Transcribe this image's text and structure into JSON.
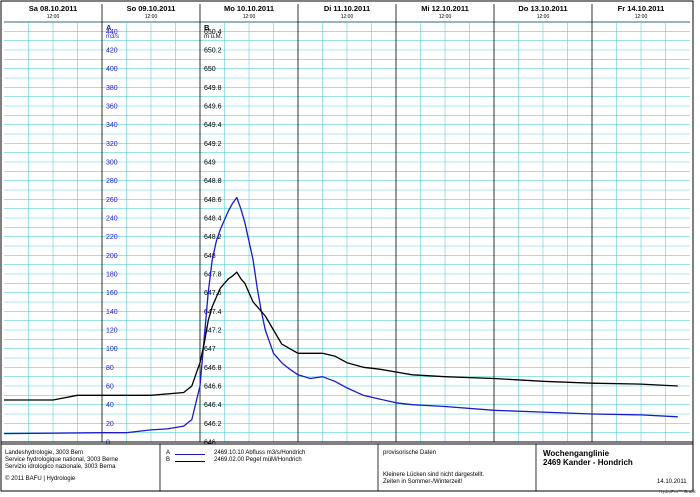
{
  "chart_data": {
    "type": "line",
    "days": [
      {
        "label": "Sa  08.10.2011",
        "noon": "12:00"
      },
      {
        "label": "So  09.10.2011",
        "noon": "12:00"
      },
      {
        "label": "Mo  10.10.2011",
        "noon": "12:00"
      },
      {
        "label": "Di  11.10.2011",
        "noon": "12:00"
      },
      {
        "label": "Mi  12.10.2011",
        "noon": "12:00"
      },
      {
        "label": "Do  13.10.2011",
        "noon": "12:00"
      },
      {
        "label": "Fr  14.10.2011",
        "noon": "12:00"
      }
    ],
    "axis_a": {
      "letter": "A",
      "unit": "m3/s",
      "ticks": [
        "440",
        "420",
        "400",
        "380",
        "360",
        "340",
        "320",
        "300",
        "280",
        "260",
        "240",
        "220",
        "200",
        "180",
        "160",
        "140",
        "120",
        "100",
        "80",
        "60",
        "40",
        "20",
        "0"
      ],
      "range": [
        0,
        450
      ],
      "color": "#1a1acc"
    },
    "axis_b": {
      "letter": "B",
      "unit": "m ü.M.",
      "ticks": [
        "650.4",
        "650.2",
        "650",
        "649.8",
        "649.6",
        "649.4",
        "649.2",
        "649",
        "648.8",
        "648.6",
        "648.4",
        "648.2",
        "648",
        "647.8",
        "647.6",
        "647.4",
        "647.2",
        "647",
        "646.8",
        "646.6",
        "646.4",
        "646.2",
        "646"
      ],
      "range": [
        646,
        650.5
      ],
      "color": "#000000"
    },
    "x_range_hours": [
      0,
      168
    ],
    "series": [
      {
        "name": "2469.10.10  Abfluss m3/s/Hondrich",
        "axis": "A",
        "color": "#1a1acc",
        "x": [
          0,
          24,
          30,
          36,
          40,
          44,
          46,
          48,
          49,
          50,
          51,
          52,
          53,
          54,
          55,
          56,
          57,
          58,
          59,
          60,
          61,
          62,
          63,
          64,
          66,
          68,
          70,
          72,
          75,
          78,
          81,
          84,
          88,
          92,
          96,
          100,
          108,
          120,
          132,
          144,
          156,
          165
        ],
        "y": [
          9,
          10,
          10,
          13,
          14,
          17,
          24,
          60,
          110,
          160,
          195,
          215,
          228,
          238,
          248,
          256,
          262,
          250,
          235,
          215,
          195,
          165,
          140,
          120,
          95,
          85,
          78,
          72,
          68,
          70,
          65,
          58,
          50,
          46,
          42,
          40,
          38,
          34,
          32,
          30,
          29,
          27
        ]
      },
      {
        "name": "2469.02.00  Pegel müM/Hondrich",
        "axis": "B",
        "color": "#000000",
        "x": [
          0,
          12,
          18,
          24,
          36,
          44,
          46,
          48,
          49,
          50,
          51,
          52,
          53,
          54,
          55,
          56,
          57,
          58,
          59,
          60,
          61,
          62,
          64,
          66,
          68,
          70,
          72,
          75,
          78,
          81,
          84,
          88,
          92,
          96,
          100,
          108,
          120,
          132,
          144,
          156,
          165
        ],
        "y": [
          646.45,
          646.45,
          646.5,
          646.5,
          646.5,
          646.53,
          646.6,
          646.85,
          647.05,
          647.3,
          647.45,
          647.55,
          647.65,
          647.7,
          647.75,
          647.78,
          647.82,
          647.75,
          647.7,
          647.6,
          647.5,
          647.45,
          647.35,
          647.2,
          647.05,
          647,
          646.95,
          646.95,
          646.95,
          646.92,
          646.85,
          646.8,
          646.78,
          646.75,
          646.72,
          646.7,
          646.68,
          646.65,
          646.63,
          646.62,
          646.6
        ]
      }
    ],
    "grid": true
  },
  "footer": {
    "agency_lines": [
      "Landeshydrologie, 3003 Bern",
      "Service hydrologique national, 3003 Berne",
      "Servizio idrologico nazionale, 3003 Berna"
    ],
    "copyright": "© 2011 BAFU | Hydrologie",
    "legend": [
      {
        "letter": "A",
        "text": "2469.10.10  Abfluss m3/s/Hondrich",
        "color": "#1a1acc"
      },
      {
        "letter": "B",
        "text": "2469.02.00  Pegel müM/Hondrich",
        "color": "#000000"
      }
    ],
    "provisional": "provisorische Daten",
    "notes": [
      "Kleinere Lücken sind nicht dargestellt.",
      "Zeiten in Sommer-/Winterzeit!"
    ],
    "title_lines": [
      "Wochenganglinie",
      "2469 Kander - Hondrich"
    ],
    "date": "14.10.2011",
    "credit": "HydroPro™ Grafik"
  }
}
